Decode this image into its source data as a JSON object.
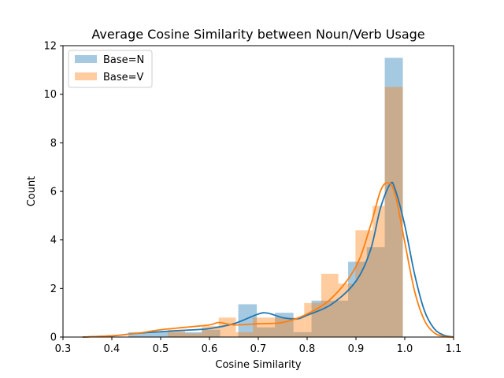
{
  "chart_data": {
    "type": "histogram_kde",
    "title": "Average Cosine Similarity between Noun/Verb Usage",
    "xlabel": "Cosine Similarity",
    "ylabel": "Count",
    "xlim": [
      0.3,
      1.1
    ],
    "ylim": [
      0,
      12
    ],
    "xticks": [
      0.3,
      0.4,
      0.5,
      0.6,
      0.7,
      0.8,
      0.9,
      1.0,
      1.1
    ],
    "xtick_labels": [
      "0.3",
      "0.4",
      "0.5",
      "0.6",
      "0.7",
      "0.8",
      "0.9",
      "1.0",
      "1.1"
    ],
    "yticks": [
      0,
      2,
      4,
      6,
      8,
      10,
      12
    ],
    "ytick_labels": [
      "0",
      "2",
      "4",
      "6",
      "8",
      "10",
      "12"
    ],
    "legend_position": "top-left",
    "series": [
      {
        "name": "Base=N",
        "color": "#1f77b4",
        "bar_alpha": 0.4,
        "bins": [
          {
            "x0": 0.434,
            "x1": 0.472,
            "count": 0.2
          },
          {
            "x0": 0.472,
            "x1": 0.509,
            "count": 0.2
          },
          {
            "x0": 0.509,
            "x1": 0.547,
            "count": 0.2
          },
          {
            "x0": 0.547,
            "x1": 0.584,
            "count": 0.2
          },
          {
            "x0": 0.584,
            "x1": 0.622,
            "count": 0.3
          },
          {
            "x0": 0.622,
            "x1": 0.659,
            "count": 0.0
          },
          {
            "x0": 0.659,
            "x1": 0.697,
            "count": 1.35
          },
          {
            "x0": 0.697,
            "x1": 0.734,
            "count": 0.4
          },
          {
            "x0": 0.734,
            "x1": 0.772,
            "count": 1.0
          },
          {
            "x0": 0.772,
            "x1": 0.809,
            "count": 0.2
          },
          {
            "x0": 0.809,
            "x1": 0.847,
            "count": 1.5
          },
          {
            "x0": 0.847,
            "x1": 0.884,
            "count": 1.5
          },
          {
            "x0": 0.884,
            "x1": 0.922,
            "count": 3.1
          },
          {
            "x0": 0.922,
            "x1": 0.959,
            "count": 3.7
          },
          {
            "x0": 0.959,
            "x1": 0.996,
            "count": 11.5
          }
        ],
        "kde": [
          [
            0.34,
            0.0
          ],
          [
            0.4,
            0.05
          ],
          [
            0.45,
            0.15
          ],
          [
            0.5,
            0.22
          ],
          [
            0.55,
            0.28
          ],
          [
            0.6,
            0.35
          ],
          [
            0.65,
            0.55
          ],
          [
            0.7,
            0.95
          ],
          [
            0.72,
            0.98
          ],
          [
            0.75,
            0.8
          ],
          [
            0.78,
            0.75
          ],
          [
            0.8,
            0.9
          ],
          [
            0.85,
            1.35
          ],
          [
            0.9,
            2.3
          ],
          [
            0.93,
            3.6
          ],
          [
            0.95,
            5.3
          ],
          [
            0.97,
            6.3
          ],
          [
            0.98,
            6.1
          ],
          [
            1.0,
            4.6
          ],
          [
            1.02,
            2.6
          ],
          [
            1.04,
            1.1
          ],
          [
            1.06,
            0.35
          ],
          [
            1.08,
            0.08
          ],
          [
            1.1,
            0.0
          ]
        ]
      },
      {
        "name": "Base=V",
        "color": "#ff7f0e",
        "bar_alpha": 0.4,
        "bins": [
          {
            "x0": 0.515,
            "x1": 0.55,
            "count": 0.3
          },
          {
            "x0": 0.55,
            "x1": 0.585,
            "count": 0.15
          },
          {
            "x0": 0.585,
            "x1": 0.619,
            "count": 0.45
          },
          {
            "x0": 0.619,
            "x1": 0.654,
            "count": 0.8
          },
          {
            "x0": 0.654,
            "x1": 0.689,
            "count": 0.2
          },
          {
            "x0": 0.689,
            "x1": 0.724,
            "count": 0.8
          },
          {
            "x0": 0.724,
            "x1": 0.759,
            "count": 0.8
          },
          {
            "x0": 0.759,
            "x1": 0.794,
            "count": 0.8
          },
          {
            "x0": 0.794,
            "x1": 0.829,
            "count": 1.4
          },
          {
            "x0": 0.829,
            "x1": 0.864,
            "count": 2.6
          },
          {
            "x0": 0.864,
            "x1": 0.899,
            "count": 2.2
          },
          {
            "x0": 0.899,
            "x1": 0.934,
            "count": 4.4
          },
          {
            "x0": 0.934,
            "x1": 0.959,
            "count": 5.4
          },
          {
            "x0": 0.959,
            "x1": 0.996,
            "count": 10.3
          }
        ],
        "kde": [
          [
            0.34,
            0.0
          ],
          [
            0.4,
            0.05
          ],
          [
            0.45,
            0.15
          ],
          [
            0.5,
            0.3
          ],
          [
            0.55,
            0.4
          ],
          [
            0.6,
            0.5
          ],
          [
            0.62,
            0.6
          ],
          [
            0.65,
            0.5
          ],
          [
            0.7,
            0.55
          ],
          [
            0.75,
            0.6
          ],
          [
            0.8,
            0.95
          ],
          [
            0.85,
            1.6
          ],
          [
            0.9,
            2.9
          ],
          [
            0.93,
            4.6
          ],
          [
            0.95,
            6.0
          ],
          [
            0.965,
            6.35
          ],
          [
            0.98,
            5.9
          ],
          [
            1.0,
            3.9
          ],
          [
            1.02,
            1.9
          ],
          [
            1.04,
            0.7
          ],
          [
            1.06,
            0.18
          ],
          [
            1.08,
            0.03
          ],
          [
            1.1,
            0.0
          ]
        ]
      }
    ]
  }
}
